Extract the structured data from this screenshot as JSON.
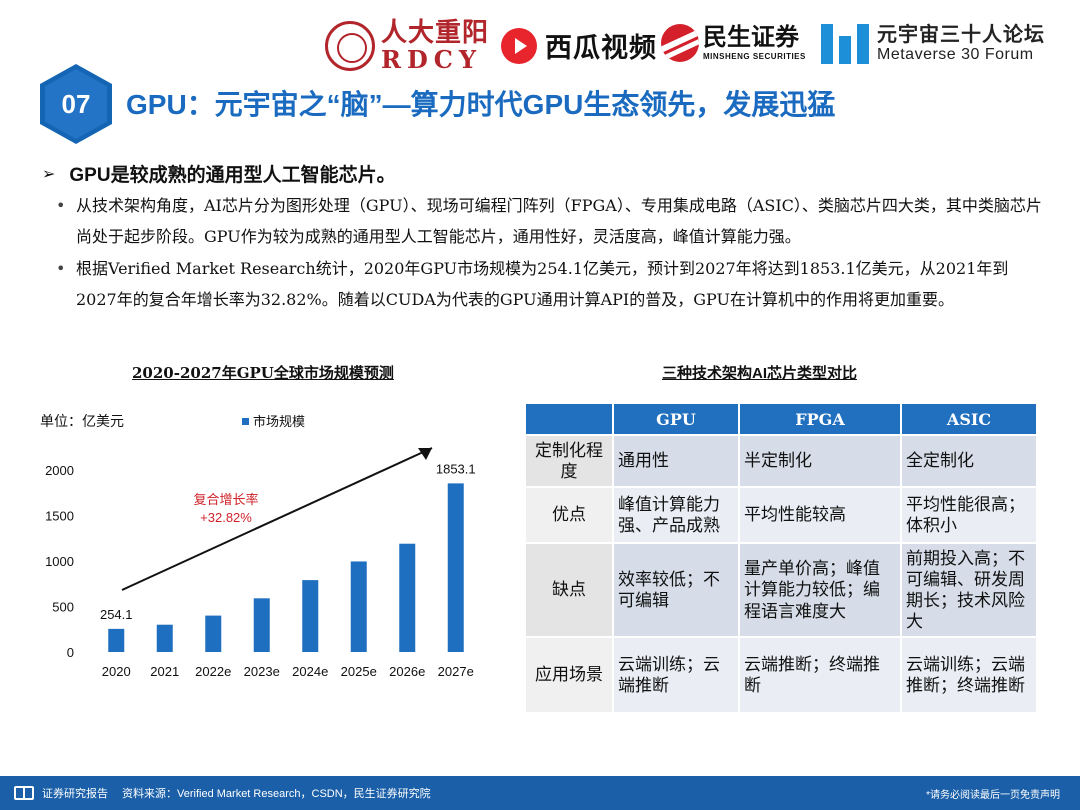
{
  "logos": {
    "rdcy_cn": "人大重阳",
    "rdcy_en": "RDCY",
    "xigua": "西瓜视频",
    "minsheng_cn": "民生证券",
    "minsheng_en": "MINSHENG SECURITIES",
    "meta_cn": "元宇宙三十人论坛",
    "meta_en": "Metaverse 30 Forum"
  },
  "header": {
    "number": "07",
    "title": "GPU：元宇宙之“脑”—算力时代GPU生态领先，发展迅猛"
  },
  "body": {
    "heading": "GPU是较成熟的通用型人工智能芯片。",
    "bullets": [
      "从技术架构角度，AI芯片分为图形处理（GPU）、现场可编程门阵列（FPGA）、专用集成电路（ASIC）、类脑芯片四大类，其中类脑芯片尚处于起步阶段。GPU作为较为成熟的通用型人工智能芯片，通用性好，灵活度高，峰值计算能力强。",
      "根据Verified Market Research统计，2020年GPU市场规模为254.1亿美元，预计到2027年将达到1853.1亿美元，从2021年到2027年的复合年增长率为32.82%。随着以CUDA为代表的GPU通用计算API的普及，GPU在计算机中的作用将更加重要。"
    ]
  },
  "chart_data": {
    "type": "bar",
    "title": "2020-2027年GPU全球市场规模预测",
    "unit_label": "单位：亿美元",
    "legend": "市场规模",
    "categories": [
      "2020",
      "2021",
      "2022e",
      "2023e",
      "2024e",
      "2025e",
      "2026e",
      "2027e"
    ],
    "values": [
      254.1,
      300,
      400,
      590,
      790,
      995,
      1190,
      1853.1
    ],
    "data_labels": {
      "first": "254.1",
      "last": "1853.1"
    },
    "y_ticks": [
      "0",
      "500",
      "1000",
      "1500",
      "2000"
    ],
    "ylim": [
      0,
      2000
    ],
    "annotation_line1": "复合增长率",
    "annotation_line2": "+32.82%",
    "bar_color": "#1f6fc0",
    "annotation_color": "#d0222a"
  },
  "table": {
    "title": "三种技术架构AI芯片类型对比",
    "headers": [
      "",
      "GPU",
      "FPGA",
      "ASIC"
    ],
    "rows": [
      {
        "label": "定制化程度",
        "gpu": "通用性",
        "fpga": "半定制化",
        "asic": "全定制化"
      },
      {
        "label": "优点",
        "gpu": "峰值计算能力强、产品成熟",
        "fpga": "平均性能较高",
        "asic": "平均性能很高；体积小"
      },
      {
        "label": "缺点",
        "gpu": "效率较低；不可编辑",
        "fpga": "量产单价高；峰值计算能力较低；编程语言难度大",
        "asic": "前期投入高；不可编辑、研发周期长；技术风险大"
      },
      {
        "label": "应用场景",
        "gpu": "云端训练；云端推断",
        "fpga": "云端推断；终端推断",
        "asic": "云端训练；云端推断；终端推断"
      }
    ]
  },
  "footer": {
    "left": "证券研究报告",
    "source": "资料来源：Verified Market Research，CSDN，民生证券研究院",
    "right": "*请务必阅读最后一页免责声明"
  }
}
